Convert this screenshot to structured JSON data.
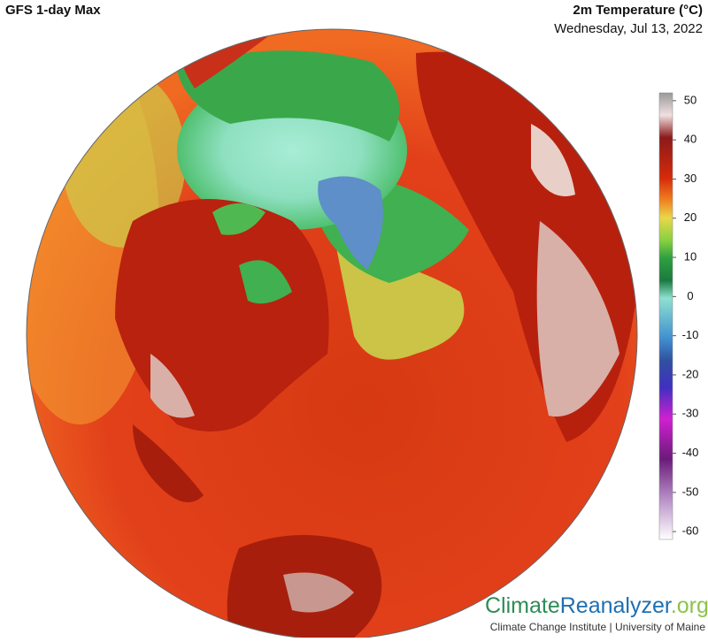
{
  "header": {
    "title": "GFS 1-day Max",
    "variable": "2m Temperature (°C)",
    "date": "Wednesday, Jul 13, 2022"
  },
  "colorbar": {
    "lim": [
      -62,
      52
    ],
    "ticks": [
      50,
      40,
      30,
      20,
      10,
      0,
      -10,
      -20,
      -30,
      -40,
      -50,
      -60
    ]
  },
  "brand": {
    "part1": "Climate",
    "part2": "Reanalyzer",
    "part3": ".org",
    "credit": "Climate Change Institute | University of Maine"
  }
}
